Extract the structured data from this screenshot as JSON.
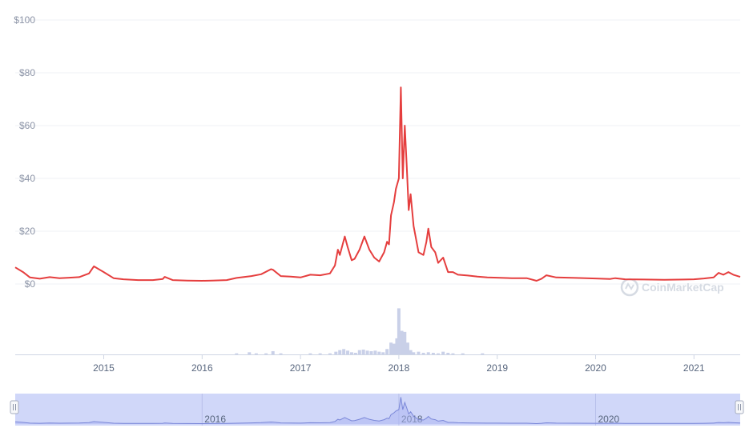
{
  "chart_data": {
    "type": "line",
    "title": "",
    "xlabel": "",
    "ylabel": "",
    "y_ticks": [
      "$100",
      "$80",
      "$60",
      "$40",
      "$20",
      "$0"
    ],
    "y_tick_values": [
      100,
      80,
      60,
      40,
      20,
      0
    ],
    "ylim": [
      0,
      100
    ],
    "x_ticks": [
      "2015",
      "2016",
      "2017",
      "2018",
      "2019",
      "2020",
      "2021"
    ],
    "x_tick_values": [
      2015,
      2016,
      2017,
      2018,
      2019,
      2020,
      2021
    ],
    "xlim": [
      2014.1,
      2021.47
    ],
    "grid": true,
    "watermark": "CoinMarketCap",
    "colors": {
      "price_line": "#e53e3e",
      "volume_bar": "#c9d0e8",
      "navigator_fill": "#c8d0f8",
      "navigator_line": "#7a87d8",
      "grid": "#eff2f5"
    },
    "series": [
      {
        "type": "line",
        "x": [
          2014.1,
          2014.18,
          2014.25,
          2014.35,
          2014.45,
          2014.55,
          2014.65,
          2014.75,
          2014.85,
          2014.9,
          2015.0,
          2015.1,
          2015.2,
          2015.35,
          2015.5,
          2015.6,
          2015.62,
          2015.7,
          2015.85,
          2016.0,
          2016.1,
          2016.25,
          2016.35,
          2016.5,
          2016.6,
          2016.7,
          2016.72,
          2016.8,
          2016.9,
          2017.0,
          2017.1,
          2017.2,
          2017.3,
          2017.35,
          2017.38,
          2017.4,
          2017.45,
          2017.48,
          2017.52,
          2017.55,
          2017.6,
          2017.65,
          2017.68,
          2017.7,
          2017.75,
          2017.8,
          2017.85,
          2017.88,
          2017.9,
          2017.92,
          2017.95,
          2017.97,
          2018.0,
          2018.02,
          2018.04,
          2018.06,
          2018.08,
          2018.1,
          2018.12,
          2018.15,
          2018.2,
          2018.25,
          2018.28,
          2018.3,
          2018.33,
          2018.37,
          2018.4,
          2018.45,
          2018.5,
          2018.55,
          2018.6,
          2018.7,
          2018.8,
          2018.9,
          2019.0,
          2019.15,
          2019.3,
          2019.4,
          2019.45,
          2019.5,
          2019.6,
          2019.8,
          2020.0,
          2020.15,
          2020.2,
          2020.3,
          2020.5,
          2020.7,
          2020.9,
          2021.0,
          2021.1,
          2021.2,
          2021.25,
          2021.3,
          2021.35,
          2021.4,
          2021.47
        ],
        "y": [
          6.3,
          4.5,
          2.5,
          2.0,
          2.6,
          2.2,
          2.4,
          2.6,
          4.0,
          6.7,
          4.5,
          2.2,
          1.8,
          1.5,
          1.5,
          1.9,
          2.7,
          1.5,
          1.3,
          1.2,
          1.3,
          1.5,
          2.3,
          3.0,
          3.7,
          5.6,
          5.4,
          3.0,
          2.8,
          2.5,
          3.5,
          3.3,
          4.0,
          7.0,
          13.0,
          11.0,
          18.0,
          14.0,
          9.0,
          9.5,
          13.0,
          18.0,
          15.0,
          13.0,
          10.0,
          8.5,
          12.0,
          16.0,
          15.0,
          26.0,
          31.0,
          36.0,
          40.0,
          74.5,
          40.0,
          60.0,
          45.0,
          28.0,
          34.0,
          22.0,
          12.0,
          11.0,
          16.0,
          21.0,
          14.0,
          12.0,
          8.0,
          10.0,
          4.5,
          4.5,
          3.5,
          3.2,
          2.8,
          2.5,
          2.4,
          2.2,
          2.2,
          1.2,
          2.0,
          3.3,
          2.5,
          2.3,
          2.1,
          1.9,
          2.2,
          1.8,
          1.7,
          1.6,
          1.7,
          1.8,
          2.1,
          2.5,
          4.2,
          3.5,
          4.5,
          3.5,
          2.7
        ]
      },
      {
        "type": "bar",
        "name": "",
        "x": [
          2016.35,
          2016.48,
          2016.55,
          2016.65,
          2016.72,
          2016.8,
          2017.1,
          2017.2,
          2017.3,
          2017.36,
          2017.4,
          2017.44,
          2017.48,
          2017.52,
          2017.56,
          2017.6,
          2017.64,
          2017.68,
          2017.72,
          2017.76,
          2017.8,
          2017.84,
          2017.88,
          2017.92,
          2017.95,
          2017.98,
          2018.0,
          2018.03,
          2018.06,
          2018.09,
          2018.12,
          2018.15,
          2018.2,
          2018.25,
          2018.3,
          2018.35,
          2018.4,
          2018.45,
          2018.5,
          2018.55,
          2018.65,
          2018.85
        ],
        "y": [
          2,
          4,
          2,
          2,
          6,
          2,
          2,
          2,
          2,
          5,
          8,
          10,
          7,
          4,
          3,
          8,
          9,
          7,
          6,
          7,
          5,
          4,
          10,
          22,
          20,
          30,
          86,
          44,
          42,
          22,
          8,
          4,
          5,
          3,
          4,
          3,
          2,
          5,
          3,
          2,
          2,
          2
        ]
      }
    ]
  }
}
